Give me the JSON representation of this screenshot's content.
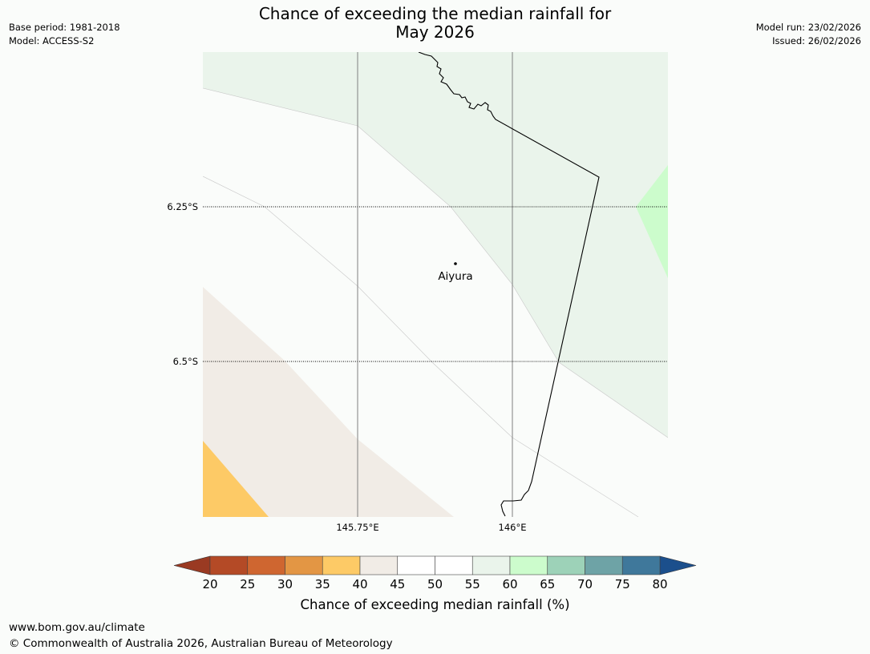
{
  "header": {
    "title_line1": "Chance of exceeding the median rainfall for",
    "title_line2": "May 2026",
    "base_period": "Base period: 1981-2018",
    "model": "Model: ACCESS-S2",
    "model_run": "Model run: 23/02/2026",
    "issued": "Issued: 26/02/2026"
  },
  "map": {
    "lat_labels": [
      "6.25°S",
      "6.5°S"
    ],
    "lon_labels": [
      "145.75°E",
      "146°E"
    ],
    "place": {
      "name": "Aiyura"
    },
    "region_categories": [
      {
        "label": "35-40",
        "color": "#fdca66"
      },
      {
        "label": "40-45",
        "color": "#f1ece6"
      },
      {
        "label": "45-55",
        "color": "#fafcfa"
      },
      {
        "label": "55-60",
        "color": "#eaf4eb"
      },
      {
        "label": "60-65",
        "color": "#ccfccc"
      }
    ]
  },
  "colorbar": {
    "title": "Chance of exceeding median rainfall (%)",
    "ticks": [
      "20",
      "25",
      "30",
      "35",
      "40",
      "45",
      "50",
      "55",
      "60",
      "65",
      "70",
      "75",
      "80"
    ],
    "under_color": "#9a3a22",
    "over_color": "#1b4f8c",
    "colors": [
      "#b44a26",
      "#cf6630",
      "#e39644",
      "#fdca66",
      "#f1ece6",
      "#ffffff",
      "#ffffff",
      "#eaf4eb",
      "#ccfccc",
      "#9dd2b8",
      "#6ea3a6",
      "#3f789b"
    ]
  },
  "footer": {
    "url": "www.bom.gov.au/climate",
    "copyright": "© Commonwealth of Australia 2026, Australian Bureau of Meteorology"
  }
}
